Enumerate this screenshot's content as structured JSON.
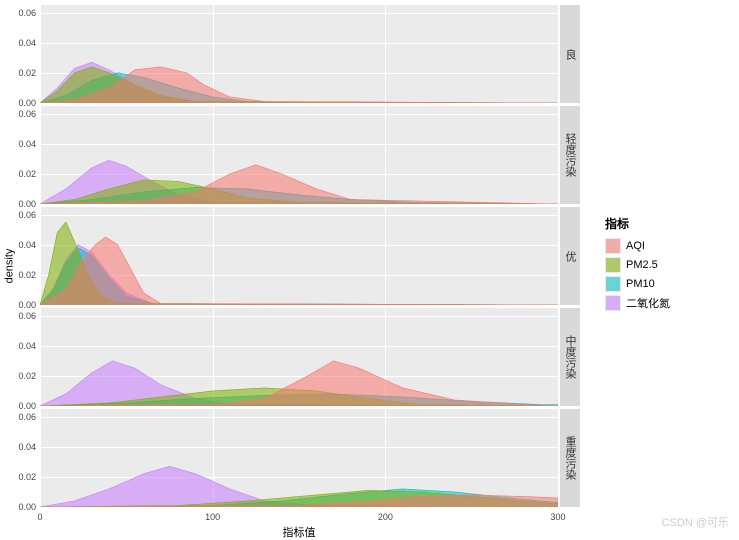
{
  "chart": {
    "type": "density-facet",
    "background_color": "#ffffff",
    "panel_color": "#ebebeb",
    "grid_color": "#ffffff",
    "strip_color": "#d9d9d9",
    "xlabel": "指标值",
    "ylabel": "density",
    "xlim": [
      0,
      300
    ],
    "ylim": [
      0,
      0.065
    ],
    "xticks": [
      0,
      100,
      200,
      300
    ],
    "yticks": [
      0.0,
      0.02,
      0.04,
      0.06
    ],
    "ytick_labels": [
      "0.00",
      "0.02",
      "0.04",
      "0.06"
    ],
    "facet_labels": [
      "良",
      "轻度污染",
      "优",
      "中度污染",
      "重度污染"
    ],
    "legend_title": "指标",
    "series": [
      {
        "name": "AQI",
        "fill": "#f8766d",
        "alpha": 0.55
      },
      {
        "name": "PM2.5",
        "fill": "#7cae00",
        "alpha": 0.55
      },
      {
        "name": "PM10",
        "fill": "#00bfc4",
        "alpha": 0.55
      },
      {
        "name": "二氧化氮",
        "fill": "#c77cff",
        "alpha": 0.55
      }
    ],
    "facets": [
      {
        "curves": {
          "AQI": [
            [
              0,
              0
            ],
            [
              20,
              0.002
            ],
            [
              40,
              0.01
            ],
            [
              55,
              0.022
            ],
            [
              70,
              0.024
            ],
            [
              85,
              0.02
            ],
            [
              95,
              0.012
            ],
            [
              110,
              0.004
            ],
            [
              130,
              0.001
            ],
            [
              300,
              0
            ]
          ],
          "PM2.5": [
            [
              0,
              0
            ],
            [
              10,
              0.008
            ],
            [
              20,
              0.02
            ],
            [
              30,
              0.024
            ],
            [
              40,
              0.02
            ],
            [
              55,
              0.012
            ],
            [
              70,
              0.005
            ],
            [
              90,
              0.001
            ],
            [
              300,
              0
            ]
          ],
          "PM10": [
            [
              0,
              0
            ],
            [
              15,
              0.005
            ],
            [
              30,
              0.015
            ],
            [
              45,
              0.02
            ],
            [
              60,
              0.017
            ],
            [
              80,
              0.01
            ],
            [
              100,
              0.004
            ],
            [
              120,
              0.001
            ],
            [
              300,
              0
            ]
          ],
          "NO2": [
            [
              0,
              0
            ],
            [
              10,
              0.01
            ],
            [
              20,
              0.023
            ],
            [
              30,
              0.027
            ],
            [
              40,
              0.022
            ],
            [
              55,
              0.012
            ],
            [
              70,
              0.004
            ],
            [
              90,
              0.001
            ],
            [
              300,
              0
            ]
          ]
        }
      },
      {
        "curves": {
          "AQI": [
            [
              0,
              0
            ],
            [
              60,
              0.002
            ],
            [
              90,
              0.008
            ],
            [
              110,
              0.02
            ],
            [
              125,
              0.026
            ],
            [
              140,
              0.02
            ],
            [
              160,
              0.01
            ],
            [
              180,
              0.003
            ],
            [
              300,
              0
            ]
          ],
          "PM2.5": [
            [
              0,
              0
            ],
            [
              20,
              0.003
            ],
            [
              40,
              0.01
            ],
            [
              60,
              0.016
            ],
            [
              80,
              0.015
            ],
            [
              100,
              0.01
            ],
            [
              120,
              0.004
            ],
            [
              150,
              0.001
            ],
            [
              300,
              0
            ]
          ],
          "PM10": [
            [
              0,
              0
            ],
            [
              30,
              0.003
            ],
            [
              60,
              0.008
            ],
            [
              90,
              0.011
            ],
            [
              120,
              0.01
            ],
            [
              150,
              0.006
            ],
            [
              180,
              0.003
            ],
            [
              220,
              0.001
            ],
            [
              300,
              0
            ]
          ],
          "NO2": [
            [
              0,
              0
            ],
            [
              15,
              0.01
            ],
            [
              30,
              0.024
            ],
            [
              40,
              0.029
            ],
            [
              50,
              0.025
            ],
            [
              65,
              0.015
            ],
            [
              80,
              0.006
            ],
            [
              100,
              0.001
            ],
            [
              300,
              0
            ]
          ]
        }
      },
      {
        "curves": {
          "AQI": [
            [
              0,
              0
            ],
            [
              15,
              0.01
            ],
            [
              25,
              0.03
            ],
            [
              32,
              0.04
            ],
            [
              38,
              0.045
            ],
            [
              45,
              0.04
            ],
            [
              52,
              0.025
            ],
            [
              60,
              0.008
            ],
            [
              70,
              0.001
            ],
            [
              300,
              0
            ]
          ],
          "PM2.5": [
            [
              0,
              0
            ],
            [
              5,
              0.02
            ],
            [
              10,
              0.048
            ],
            [
              15,
              0.055
            ],
            [
              20,
              0.042
            ],
            [
              28,
              0.02
            ],
            [
              35,
              0.006
            ],
            [
              45,
              0.001
            ],
            [
              300,
              0
            ]
          ],
          "PM10": [
            [
              0,
              0
            ],
            [
              8,
              0.01
            ],
            [
              15,
              0.028
            ],
            [
              22,
              0.038
            ],
            [
              30,
              0.033
            ],
            [
              40,
              0.018
            ],
            [
              50,
              0.006
            ],
            [
              65,
              0.001
            ],
            [
              300,
              0
            ]
          ],
          "NO2": [
            [
              0,
              0
            ],
            [
              8,
              0.012
            ],
            [
              15,
              0.03
            ],
            [
              22,
              0.04
            ],
            [
              30,
              0.035
            ],
            [
              40,
              0.02
            ],
            [
              50,
              0.008
            ],
            [
              65,
              0.001
            ],
            [
              300,
              0
            ]
          ]
        }
      },
      {
        "curves": {
          "AQI": [
            [
              0,
              0
            ],
            [
              100,
              0.001
            ],
            [
              130,
              0.005
            ],
            [
              155,
              0.02
            ],
            [
              170,
              0.03
            ],
            [
              185,
              0.025
            ],
            [
              210,
              0.012
            ],
            [
              240,
              0.004
            ],
            [
              280,
              0.001
            ],
            [
              300,
              0
            ]
          ],
          "PM2.5": [
            [
              0,
              0
            ],
            [
              40,
              0.002
            ],
            [
              70,
              0.006
            ],
            [
              100,
              0.01
            ],
            [
              130,
              0.012
            ],
            [
              160,
              0.01
            ],
            [
              190,
              0.005
            ],
            [
              220,
              0.001
            ],
            [
              300,
              0
            ]
          ],
          "PM10": [
            [
              0,
              0
            ],
            [
              50,
              0.002
            ],
            [
              90,
              0.005
            ],
            [
              130,
              0.007
            ],
            [
              170,
              0.008
            ],
            [
              210,
              0.006
            ],
            [
              250,
              0.003
            ],
            [
              290,
              0.001
            ],
            [
              300,
              0.001
            ]
          ],
          "NO2": [
            [
              0,
              0
            ],
            [
              15,
              0.008
            ],
            [
              30,
              0.022
            ],
            [
              42,
              0.03
            ],
            [
              55,
              0.025
            ],
            [
              70,
              0.014
            ],
            [
              90,
              0.005
            ],
            [
              110,
              0.001
            ],
            [
              300,
              0
            ]
          ]
        }
      },
      {
        "curves": {
          "AQI": [
            [
              0,
              0
            ],
            [
              150,
              0.001
            ],
            [
              190,
              0.004
            ],
            [
              220,
              0.007
            ],
            [
              250,
              0.008
            ],
            [
              280,
              0.007
            ],
            [
              300,
              0.006
            ]
          ],
          "PM2.5": [
            [
              0,
              0
            ],
            [
              80,
              0.001
            ],
            [
              120,
              0.004
            ],
            [
              160,
              0.008
            ],
            [
              190,
              0.011
            ],
            [
              220,
              0.01
            ],
            [
              260,
              0.006
            ],
            [
              300,
              0.002
            ]
          ],
          "PM10": [
            [
              0,
              0
            ],
            [
              100,
              0.001
            ],
            [
              140,
              0.004
            ],
            [
              180,
              0.009
            ],
            [
              210,
              0.012
            ],
            [
              240,
              0.01
            ],
            [
              280,
              0.005
            ],
            [
              300,
              0.003
            ]
          ],
          "NO2": [
            [
              0,
              0
            ],
            [
              20,
              0.004
            ],
            [
              40,
              0.012
            ],
            [
              60,
              0.022
            ],
            [
              75,
              0.027
            ],
            [
              90,
              0.022
            ],
            [
              110,
              0.012
            ],
            [
              130,
              0.004
            ],
            [
              160,
              0.001
            ],
            [
              300,
              0
            ]
          ]
        }
      }
    ]
  },
  "watermark": "CSDN @可乐"
}
